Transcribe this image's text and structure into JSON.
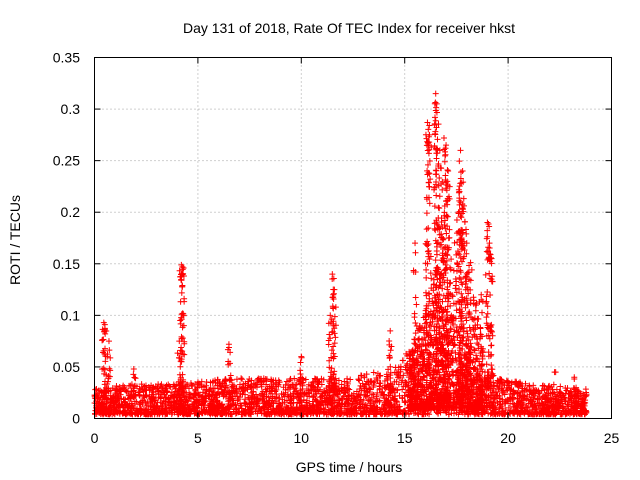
{
  "chart_data": {
    "type": "scatter",
    "title": "Day 131 of 2018, Rate Of TEC Index for receiver hkst",
    "xlabel": "GPS time / hours",
    "ylabel": "ROTI / TECUs",
    "xlim": [
      0,
      25
    ],
    "ylim": [
      0,
      0.35
    ],
    "xticks": [
      0,
      5,
      10,
      15,
      20,
      25
    ],
    "xtick_labels": [
      "0",
      "5",
      "10",
      "15",
      "20",
      "25"
    ],
    "yticks": [
      0,
      0.05,
      0.1,
      0.15,
      0.2,
      0.25,
      0.3,
      0.35
    ],
    "ytick_labels": [
      "0",
      "0.05",
      "0.1",
      "0.15",
      "0.2",
      "0.25",
      "0.3",
      "0.35"
    ],
    "grid": true,
    "marker": "+",
    "color": "#ff0000",
    "x_data_range": [
      0,
      23.8
    ],
    "baseline_envelope": [
      {
        "x": 0.0,
        "y_max": 0.025
      },
      {
        "x": 2.0,
        "y_max": 0.03
      },
      {
        "x": 4.0,
        "y_max": 0.03
      },
      {
        "x": 6.5,
        "y_max": 0.035
      },
      {
        "x": 9.0,
        "y_max": 0.035
      },
      {
        "x": 12.0,
        "y_max": 0.035
      },
      {
        "x": 14.5,
        "y_max": 0.045
      },
      {
        "x": 15.5,
        "y_max": 0.07
      },
      {
        "x": 16.5,
        "y_max": 0.12
      },
      {
        "x": 17.5,
        "y_max": 0.09
      },
      {
        "x": 18.5,
        "y_max": 0.05
      },
      {
        "x": 19.5,
        "y_max": 0.035
      },
      {
        "x": 21.0,
        "y_max": 0.03
      },
      {
        "x": 23.8,
        "y_max": 0.025
      }
    ],
    "notable_points": [
      {
        "x": 0.45,
        "y": 0.093
      },
      {
        "x": 0.5,
        "y": 0.091
      },
      {
        "x": 0.7,
        "y": 0.075
      },
      {
        "x": 1.9,
        "y": 0.048
      },
      {
        "x": 4.2,
        "y": 0.149
      },
      {
        "x": 4.25,
        "y": 0.147
      },
      {
        "x": 4.25,
        "y": 0.129
      },
      {
        "x": 4.1,
        "y": 0.075
      },
      {
        "x": 6.5,
        "y": 0.072
      },
      {
        "x": 10.0,
        "y": 0.06
      },
      {
        "x": 11.5,
        "y": 0.14
      },
      {
        "x": 11.6,
        "y": 0.125
      },
      {
        "x": 11.4,
        "y": 0.1
      },
      {
        "x": 14.3,
        "y": 0.085
      },
      {
        "x": 15.5,
        "y": 0.17
      },
      {
        "x": 16.1,
        "y": 0.287
      },
      {
        "x": 16.2,
        "y": 0.275
      },
      {
        "x": 16.5,
        "y": 0.315
      },
      {
        "x": 16.55,
        "y": 0.305
      },
      {
        "x": 16.7,
        "y": 0.26
      },
      {
        "x": 16.9,
        "y": 0.272
      },
      {
        "x": 17.0,
        "y": 0.265
      },
      {
        "x": 17.1,
        "y": 0.24
      },
      {
        "x": 17.7,
        "y": 0.26
      },
      {
        "x": 17.8,
        "y": 0.24
      },
      {
        "x": 17.6,
        "y": 0.2
      },
      {
        "x": 18.0,
        "y": 0.17
      },
      {
        "x": 18.7,
        "y": 0.12
      },
      {
        "x": 19.0,
        "y": 0.19
      },
      {
        "x": 19.1,
        "y": 0.17
      },
      {
        "x": 19.2,
        "y": 0.155
      },
      {
        "x": 22.3,
        "y": 0.045
      },
      {
        "x": 23.2,
        "y": 0.04
      }
    ]
  }
}
